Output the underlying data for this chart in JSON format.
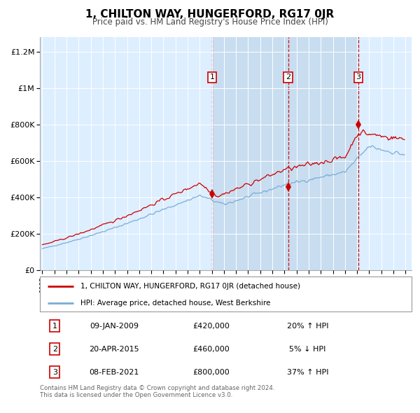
{
  "title": "1, CHILTON WAY, HUNGERFORD, RG17 0JR",
  "subtitle": "Price paid vs. HM Land Registry's House Price Index (HPI)",
  "hpi_label": "HPI: Average price, detached house, West Berkshire",
  "property_label": "1, CHILTON WAY, HUNGERFORD, RG17 0JR (detached house)",
  "red_color": "#cc0000",
  "blue_color": "#7aadd4",
  "bg_color": "#ddeeff",
  "shade_color": "#c8ddf0",
  "transactions": [
    {
      "num": 1,
      "date": "09-JAN-2009",
      "price": 420000,
      "hpi_change": "20% ↑ HPI",
      "year": 2009.03
    },
    {
      "num": 2,
      "date": "20-APR-2015",
      "price": 460000,
      "hpi_change": "5% ↓ HPI",
      "year": 2015.3
    },
    {
      "num": 3,
      "date": "08-FEB-2021",
      "price": 800000,
      "hpi_change": "37% ↑ HPI",
      "year": 2021.1
    }
  ],
  "footer": "Contains HM Land Registry data © Crown copyright and database right 2024.\nThis data is licensed under the Open Government Licence v3.0.",
  "ylim": [
    0,
    1280000
  ],
  "xlim_start": 1994.8,
  "xlim_end": 2025.5,
  "ytick_vals": [
    0,
    200000,
    400000,
    600000,
    800000,
    1000000,
    1200000
  ],
  "ytick_labels": [
    "£0",
    "£200K",
    "£400K",
    "£600K",
    "£800K",
    "£1M",
    "£1.2M"
  ]
}
